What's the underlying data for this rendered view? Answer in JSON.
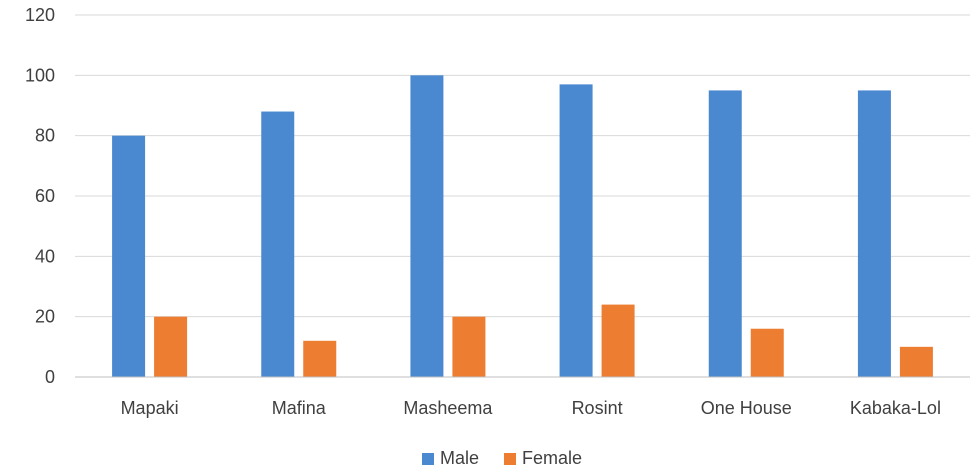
{
  "chart_data": {
    "type": "bar",
    "categories": [
      "Mapaki",
      "Mafina",
      "Masheema",
      "Rosint",
      "One House",
      "Kabaka-Lol"
    ],
    "series": [
      {
        "name": "Male",
        "color": "#4a89d0",
        "values": [
          80,
          88,
          100,
          97,
          95,
          95
        ]
      },
      {
        "name": "Female",
        "color": "#ed7d31",
        "values": [
          20,
          12,
          20,
          24,
          16,
          10
        ]
      }
    ],
    "ylim": [
      0,
      120
    ],
    "yticks": [
      "0",
      "20",
      "40",
      "60",
      "80",
      "100",
      "120"
    ],
    "grid": true,
    "legend_position": "bottom"
  }
}
